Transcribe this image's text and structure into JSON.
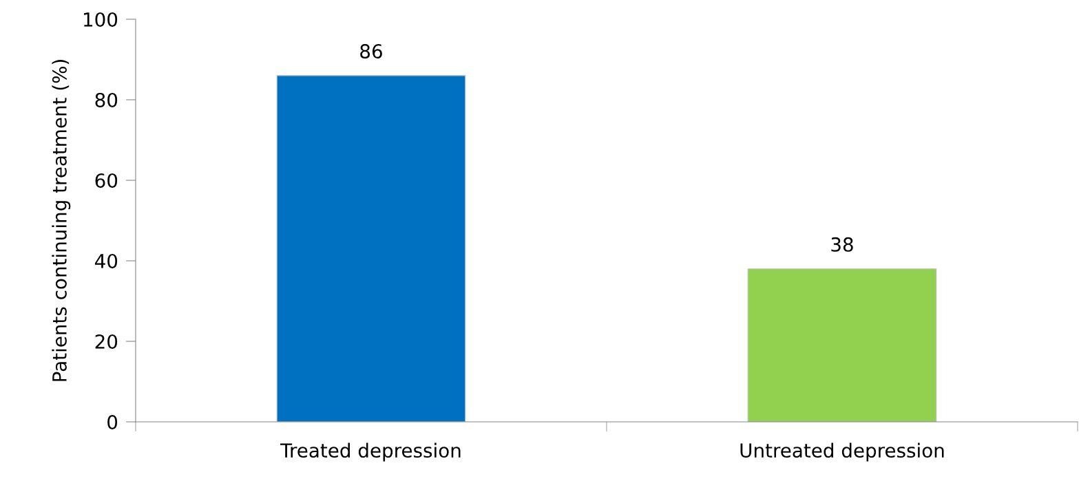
{
  "chart_data": {
    "type": "bar",
    "ylabel": "Patients continuing treatment (%)",
    "categories": [
      "Treated depression",
      "Untreated depression"
    ],
    "values": [
      86,
      38
    ],
    "colors": [
      "#0070c0",
      "#92d050"
    ],
    "ylim": [
      0,
      100
    ],
    "yticks": [
      0,
      20,
      40,
      60,
      80,
      100
    ],
    "data_labels": true,
    "grid": false,
    "legend": false
  }
}
